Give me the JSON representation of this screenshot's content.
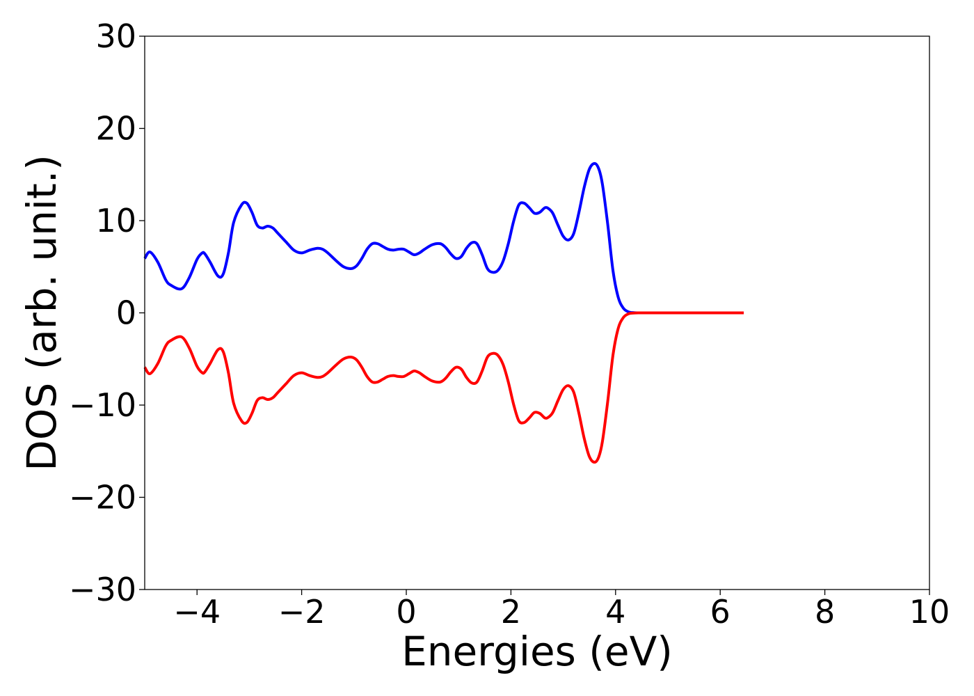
{
  "chart_data": {
    "type": "line",
    "title": "",
    "xlabel": "Energies (eV)",
    "ylabel": "DOS (arb. unit.)",
    "xlim": [
      -5,
      10
    ],
    "ylim": [
      -30,
      30
    ],
    "xticks": [
      -4,
      -2,
      0,
      2,
      4,
      6,
      8,
      10
    ],
    "yticks": [
      -30,
      -20,
      -10,
      0,
      10,
      20,
      30
    ],
    "xtick_labels": [
      "−4",
      "−2",
      "0",
      "2",
      "4",
      "6",
      "8",
      "10"
    ],
    "ytick_labels": [
      "−30",
      "−20",
      "−10",
      "0",
      "10",
      "20",
      "30"
    ],
    "grid": false,
    "legend": false,
    "series": [
      {
        "color": "#0000ff",
        "x": [
          -5.0,
          -4.9,
          -4.75,
          -4.6,
          -4.5,
          -4.3,
          -4.15,
          -4.0,
          -3.9,
          -3.85,
          -3.75,
          -3.6,
          -3.5,
          -3.4,
          -3.3,
          -3.15,
          -3.05,
          -2.95,
          -2.85,
          -2.75,
          -2.65,
          -2.55,
          -2.45,
          -2.3,
          -2.15,
          -2.0,
          -1.85,
          -1.7,
          -1.6,
          -1.5,
          -1.35,
          -1.2,
          -1.05,
          -0.95,
          -0.85,
          -0.75,
          -0.65,
          -0.55,
          -0.45,
          -0.35,
          -0.25,
          -0.15,
          -0.05,
          0.05,
          0.15,
          0.25,
          0.35,
          0.5,
          0.65,
          0.75,
          0.85,
          0.95,
          1.05,
          1.15,
          1.25,
          1.35,
          1.45,
          1.55,
          1.65,
          1.75,
          1.85,
          1.95,
          2.05,
          2.15,
          2.25,
          2.35,
          2.45,
          2.55,
          2.65,
          2.72,
          2.8,
          2.9,
          3.0,
          3.1,
          3.2,
          3.3,
          3.4,
          3.5,
          3.6,
          3.68,
          3.75,
          3.85,
          3.95,
          4.05,
          4.15,
          4.25,
          4.35,
          4.45,
          4.55,
          4.7,
          5.0,
          5.5,
          6.0,
          6.45
        ],
        "y": [
          5.9,
          6.6,
          5.5,
          3.6,
          3.0,
          2.6,
          3.8,
          5.8,
          6.5,
          6.4,
          5.5,
          4.0,
          4.2,
          6.5,
          9.8,
          11.7,
          11.9,
          10.9,
          9.5,
          9.2,
          9.4,
          9.2,
          8.6,
          7.7,
          6.8,
          6.5,
          6.8,
          7.0,
          6.9,
          6.5,
          5.7,
          5.0,
          4.8,
          5.1,
          5.9,
          6.9,
          7.5,
          7.5,
          7.2,
          6.9,
          6.8,
          6.9,
          6.9,
          6.6,
          6.3,
          6.5,
          6.9,
          7.4,
          7.5,
          7.1,
          6.4,
          5.9,
          6.1,
          7.0,
          7.6,
          7.5,
          6.3,
          4.8,
          4.4,
          4.6,
          5.6,
          7.5,
          9.9,
          11.7,
          11.9,
          11.4,
          10.8,
          10.9,
          11.4,
          11.3,
          10.8,
          9.5,
          8.3,
          7.9,
          8.6,
          10.9,
          13.6,
          15.6,
          16.2,
          15.6,
          13.9,
          9.6,
          4.6,
          1.7,
          0.5,
          0.1,
          0.02,
          0.0,
          0.0,
          0.0,
          0.0,
          0.0,
          0.0,
          0.0
        ]
      },
      {
        "color": "#ff0000",
        "x": [
          -5.0,
          -4.9,
          -4.75,
          -4.6,
          -4.5,
          -4.3,
          -4.15,
          -4.0,
          -3.9,
          -3.85,
          -3.75,
          -3.6,
          -3.5,
          -3.4,
          -3.3,
          -3.15,
          -3.05,
          -2.95,
          -2.85,
          -2.75,
          -2.65,
          -2.55,
          -2.45,
          -2.3,
          -2.15,
          -2.0,
          -1.85,
          -1.7,
          -1.6,
          -1.5,
          -1.35,
          -1.2,
          -1.05,
          -0.95,
          -0.85,
          -0.75,
          -0.65,
          -0.55,
          -0.45,
          -0.35,
          -0.25,
          -0.15,
          -0.05,
          0.05,
          0.15,
          0.25,
          0.35,
          0.5,
          0.65,
          0.75,
          0.85,
          0.95,
          1.05,
          1.15,
          1.25,
          1.35,
          1.45,
          1.55,
          1.65,
          1.75,
          1.85,
          1.95,
          2.05,
          2.15,
          2.25,
          2.35,
          2.45,
          2.55,
          2.65,
          2.72,
          2.8,
          2.9,
          3.0,
          3.1,
          3.2,
          3.3,
          3.4,
          3.5,
          3.6,
          3.68,
          3.75,
          3.85,
          3.95,
          4.05,
          4.15,
          4.25,
          4.35,
          4.45,
          4.55,
          4.7,
          5.0,
          5.5,
          6.0,
          6.45
        ],
        "y": [
          -5.9,
          -6.6,
          -5.5,
          -3.6,
          -3.0,
          -2.6,
          -3.8,
          -5.8,
          -6.5,
          -6.4,
          -5.5,
          -4.0,
          -4.2,
          -6.5,
          -9.8,
          -11.7,
          -11.9,
          -10.9,
          -9.5,
          -9.2,
          -9.4,
          -9.2,
          -8.6,
          -7.7,
          -6.8,
          -6.5,
          -6.8,
          -7.0,
          -6.9,
          -6.5,
          -5.7,
          -5.0,
          -4.8,
          -5.1,
          -5.9,
          -6.9,
          -7.5,
          -7.5,
          -7.2,
          -6.9,
          -6.8,
          -6.9,
          -6.9,
          -6.6,
          -6.3,
          -6.5,
          -6.9,
          -7.4,
          -7.5,
          -7.1,
          -6.4,
          -5.9,
          -6.1,
          -7.0,
          -7.6,
          -7.5,
          -6.3,
          -4.8,
          -4.4,
          -4.6,
          -5.6,
          -7.5,
          -9.9,
          -11.7,
          -11.9,
          -11.4,
          -10.8,
          -10.9,
          -11.4,
          -11.3,
          -10.8,
          -9.5,
          -8.3,
          -7.9,
          -8.6,
          -10.9,
          -13.6,
          -15.6,
          -16.2,
          -15.6,
          -13.9,
          -9.6,
          -4.6,
          -1.7,
          -0.5,
          -0.1,
          -0.02,
          0.0,
          0.0,
          0.0,
          0.0,
          0.0,
          0.0,
          0.0
        ]
      }
    ]
  }
}
